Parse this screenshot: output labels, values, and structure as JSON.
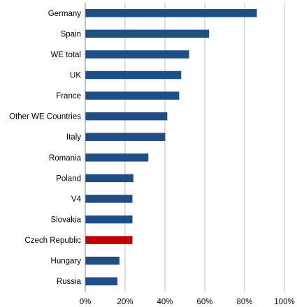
{
  "chart_data": {
    "type": "bar",
    "orientation": "horizontal",
    "categories": [
      "Germany",
      "Spain",
      "WE total",
      "UK",
      "France",
      "Other WE Countries",
      "Italy",
      "Romania",
      "Poland",
      "V4",
      "Slovakia",
      "Czech Republic",
      "Hungary",
      "Russia"
    ],
    "values": [
      86,
      62,
      52,
      48,
      47,
      41,
      40,
      31.5,
      24,
      23.5,
      23.5,
      23.5,
      17,
      16
    ],
    "title": "",
    "xlabel": "",
    "ylabel": "",
    "xlim": [
      0,
      100
    ],
    "x_ticks": [
      "0%",
      "20%",
      "40%",
      "60%",
      "80%",
      "100%"
    ],
    "x_tick_values": [
      0,
      20,
      40,
      60,
      80,
      100
    ],
    "grid": "vertical",
    "legend": "none",
    "colors": {
      "default_bar": "#1F4E85",
      "highlight_bar": "#C00000",
      "grid": "#BFBFBF",
      "axis": "#868686"
    },
    "highlight_category": "Czech Republic"
  }
}
